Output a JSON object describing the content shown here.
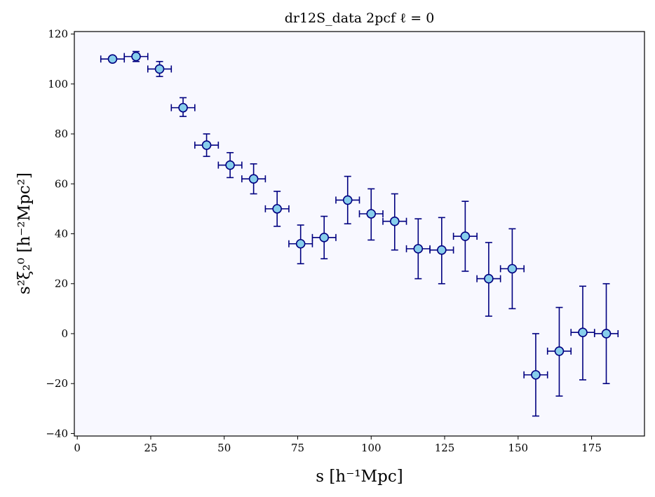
{
  "chart_data": {
    "type": "scatter",
    "title": "dr12S_data 2pcf ℓ = 0",
    "xlabel": "s [h⁻¹Mpc]",
    "ylabel": "s²ξ₂⁰ [h⁻²Mpc²]",
    "xlim": [
      -1,
      193
    ],
    "ylim": [
      -41,
      121
    ],
    "xticks": [
      0,
      25,
      50,
      75,
      100,
      125,
      150,
      175
    ],
    "yticks": [
      -40,
      -20,
      0,
      20,
      40,
      60,
      80,
      100,
      120
    ],
    "ytick_labels": [
      "−40",
      "−20",
      "0",
      "20",
      "40",
      "60",
      "80",
      "100",
      "120"
    ],
    "grid": false,
    "x_error": 4,
    "series": [
      {
        "x": [
          12,
          20,
          28,
          36,
          44,
          52,
          60,
          68,
          76,
          84,
          92,
          100,
          108,
          116,
          124,
          132,
          140,
          148,
          156,
          164,
          172,
          180
        ],
        "y": [
          110,
          111,
          106,
          90.5,
          75.5,
          67.5,
          62,
          50,
          36,
          38.5,
          53.5,
          48,
          45,
          34,
          33.5,
          39,
          22,
          26,
          -16.5,
          -7,
          0.5,
          0
        ],
        "yerr_low": [
          110,
          109,
          103,
          87,
          71,
          62.5,
          56,
          43,
          28,
          30,
          44,
          37.5,
          33.5,
          22,
          20,
          25,
          7,
          10,
          -33,
          -25,
          -18.5,
          -20
        ],
        "yerr_high": [
          110,
          113,
          109,
          94.5,
          80,
          72.5,
          68,
          57,
          43.5,
          47,
          63,
          58,
          56,
          46,
          46.5,
          53,
          36.5,
          42,
          0,
          10.5,
          19,
          20
        ],
        "marker_color": "#87CEEB",
        "edge_color": "#000080"
      }
    ]
  }
}
